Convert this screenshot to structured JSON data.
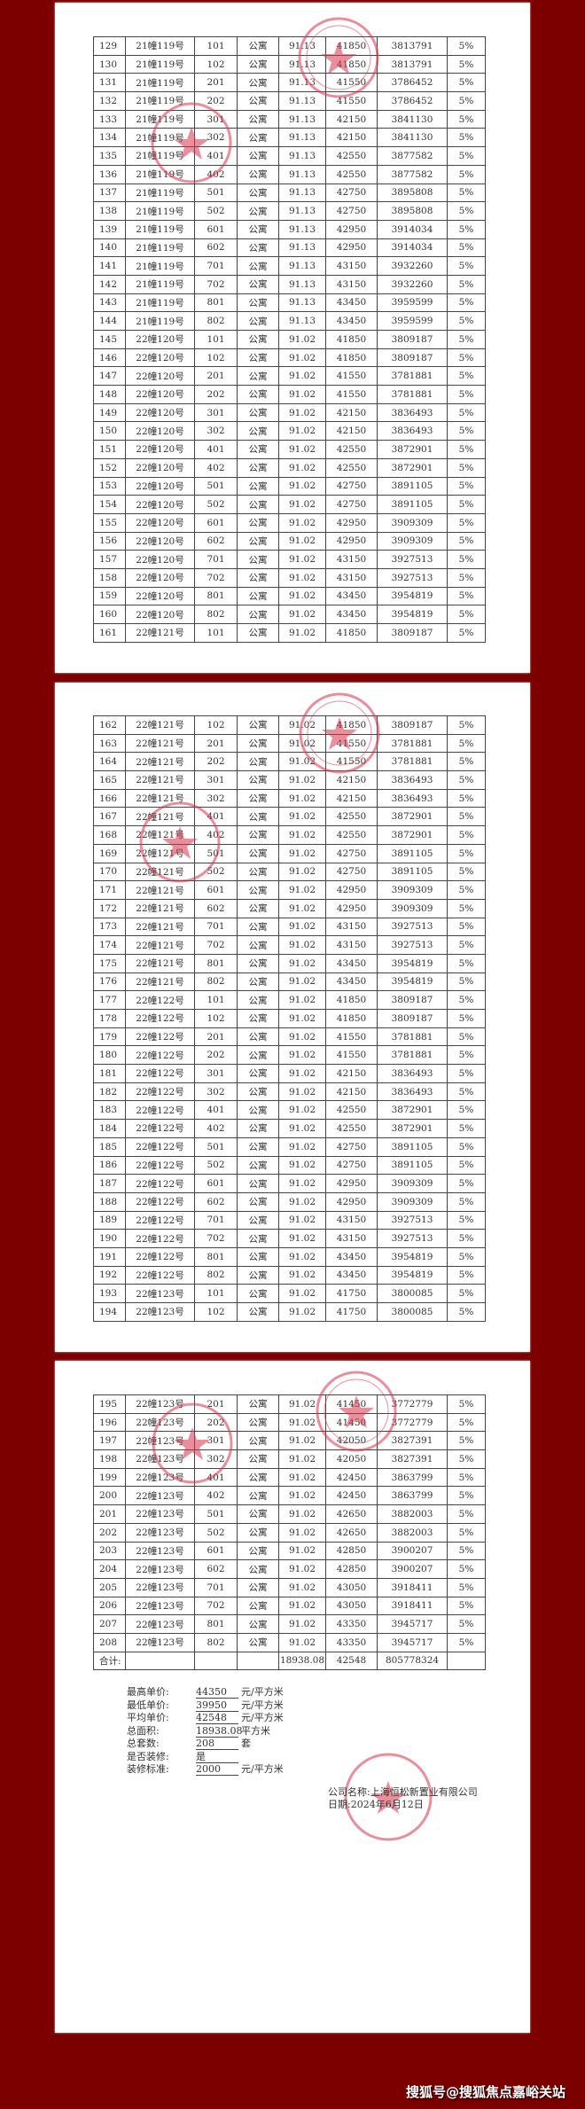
{
  "colors": {
    "background": "#7c0000",
    "stamp": "#d9324a"
  },
  "pages": [
    {
      "rows": [
        [
          "129",
          "21幢119号",
          "101",
          "公寓",
          "91.13",
          "41850",
          "3813791",
          "5%"
        ],
        [
          "130",
          "21幢119号",
          "102",
          "公寓",
          "91.13",
          "41850",
          "3813791",
          "5%"
        ],
        [
          "131",
          "21幢119号",
          "201",
          "公寓",
          "91.13",
          "41550",
          "3786452",
          "5%"
        ],
        [
          "132",
          "21幢119号",
          "202",
          "公寓",
          "91.13",
          "41550",
          "3786452",
          "5%"
        ],
        [
          "133",
          "21幢119号",
          "301",
          "公寓",
          "91.13",
          "42150",
          "3841130",
          "5%"
        ],
        [
          "134",
          "21幢119号",
          "302",
          "公寓",
          "91.13",
          "42150",
          "3841130",
          "5%"
        ],
        [
          "135",
          "21幢119号",
          "401",
          "公寓",
          "91.13",
          "42550",
          "3877582",
          "5%"
        ],
        [
          "136",
          "21幢119号",
          "402",
          "公寓",
          "91.13",
          "42550",
          "3877582",
          "5%"
        ],
        [
          "137",
          "21幢119号",
          "501",
          "公寓",
          "91.13",
          "42750",
          "3895808",
          "5%"
        ],
        [
          "138",
          "21幢119号",
          "502",
          "公寓",
          "91.13",
          "42750",
          "3895808",
          "5%"
        ],
        [
          "139",
          "21幢119号",
          "601",
          "公寓",
          "91.13",
          "42950",
          "3914034",
          "5%"
        ],
        [
          "140",
          "21幢119号",
          "602",
          "公寓",
          "91.13",
          "42950",
          "3914034",
          "5%"
        ],
        [
          "141",
          "21幢119号",
          "701",
          "公寓",
          "91.13",
          "43150",
          "3932260",
          "5%"
        ],
        [
          "142",
          "21幢119号",
          "702",
          "公寓",
          "91.13",
          "43150",
          "3932260",
          "5%"
        ],
        [
          "143",
          "21幢119号",
          "801",
          "公寓",
          "91.13",
          "43450",
          "3959599",
          "5%"
        ],
        [
          "144",
          "21幢119号",
          "802",
          "公寓",
          "91.13",
          "43450",
          "3959599",
          "5%"
        ],
        [
          "145",
          "22幢120号",
          "101",
          "公寓",
          "91.02",
          "41850",
          "3809187",
          "5%"
        ],
        [
          "146",
          "22幢120号",
          "102",
          "公寓",
          "91.02",
          "41850",
          "3809187",
          "5%"
        ],
        [
          "147",
          "22幢120号",
          "201",
          "公寓",
          "91.02",
          "41550",
          "3781881",
          "5%"
        ],
        [
          "148",
          "22幢120号",
          "202",
          "公寓",
          "91.02",
          "41550",
          "3781881",
          "5%"
        ],
        [
          "149",
          "22幢120号",
          "301",
          "公寓",
          "91.02",
          "42150",
          "3836493",
          "5%"
        ],
        [
          "150",
          "22幢120号",
          "302",
          "公寓",
          "91.02",
          "42150",
          "3836493",
          "5%"
        ],
        [
          "151",
          "22幢120号",
          "401",
          "公寓",
          "91.02",
          "42550",
          "3872901",
          "5%"
        ],
        [
          "152",
          "22幢120号",
          "402",
          "公寓",
          "91.02",
          "42550",
          "3872901",
          "5%"
        ],
        [
          "153",
          "22幢120号",
          "501",
          "公寓",
          "91.02",
          "42750",
          "3891105",
          "5%"
        ],
        [
          "154",
          "22幢120号",
          "502",
          "公寓",
          "91.02",
          "42750",
          "3891105",
          "5%"
        ],
        [
          "155",
          "22幢120号",
          "601",
          "公寓",
          "91.02",
          "42950",
          "3909309",
          "5%"
        ],
        [
          "156",
          "22幢120号",
          "602",
          "公寓",
          "91.02",
          "42950",
          "3909309",
          "5%"
        ],
        [
          "157",
          "22幢120号",
          "701",
          "公寓",
          "91.02",
          "43150",
          "3927513",
          "5%"
        ],
        [
          "158",
          "22幢120号",
          "702",
          "公寓",
          "91.02",
          "43150",
          "3927513",
          "5%"
        ],
        [
          "159",
          "22幢120号",
          "801",
          "公寓",
          "91.02",
          "43450",
          "3954819",
          "5%"
        ],
        [
          "160",
          "22幢120号",
          "802",
          "公寓",
          "91.02",
          "43450",
          "3954819",
          "5%"
        ],
        [
          "161",
          "22幢121号",
          "101",
          "公寓",
          "91.02",
          "41850",
          "3809187",
          "5%"
        ]
      ]
    },
    {
      "rows": [
        [
          "162",
          "22幢121号",
          "102",
          "公寓",
          "91.02",
          "41850",
          "3809187",
          "5%"
        ],
        [
          "163",
          "22幢121号",
          "201",
          "公寓",
          "91.02",
          "41550",
          "3781881",
          "5%"
        ],
        [
          "164",
          "22幢121号",
          "202",
          "公寓",
          "91.02",
          "41550",
          "3781881",
          "5%"
        ],
        [
          "165",
          "22幢121号",
          "301",
          "公寓",
          "91.02",
          "42150",
          "3836493",
          "5%"
        ],
        [
          "166",
          "22幢121号",
          "302",
          "公寓",
          "91.02",
          "42150",
          "3836493",
          "5%"
        ],
        [
          "167",
          "22幢121号",
          "401",
          "公寓",
          "91.02",
          "42550",
          "3872901",
          "5%"
        ],
        [
          "168",
          "22幢121号",
          "402",
          "公寓",
          "91.02",
          "42550",
          "3872901",
          "5%"
        ],
        [
          "169",
          "22幢121号",
          "501",
          "公寓",
          "91.02",
          "42750",
          "3891105",
          "5%"
        ],
        [
          "170",
          "22幢121号",
          "502",
          "公寓",
          "91.02",
          "42750",
          "3891105",
          "5%"
        ],
        [
          "171",
          "22幢121号",
          "601",
          "公寓",
          "91.02",
          "42950",
          "3909309",
          "5%"
        ],
        [
          "172",
          "22幢121号",
          "602",
          "公寓",
          "91.02",
          "42950",
          "3909309",
          "5%"
        ],
        [
          "173",
          "22幢121号",
          "701",
          "公寓",
          "91.02",
          "43150",
          "3927513",
          "5%"
        ],
        [
          "174",
          "22幢121号",
          "702",
          "公寓",
          "91.02",
          "43150",
          "3927513",
          "5%"
        ],
        [
          "175",
          "22幢121号",
          "801",
          "公寓",
          "91.02",
          "43450",
          "3954819",
          "5%"
        ],
        [
          "176",
          "22幢121号",
          "802",
          "公寓",
          "91.02",
          "43450",
          "3954819",
          "5%"
        ],
        [
          "177",
          "22幢122号",
          "101",
          "公寓",
          "91.02",
          "41850",
          "3809187",
          "5%"
        ],
        [
          "178",
          "22幢122号",
          "102",
          "公寓",
          "91.02",
          "41850",
          "3809187",
          "5%"
        ],
        [
          "179",
          "22幢122号",
          "201",
          "公寓",
          "91.02",
          "41550",
          "3781881",
          "5%"
        ],
        [
          "180",
          "22幢122号",
          "202",
          "公寓",
          "91.02",
          "41550",
          "3781881",
          "5%"
        ],
        [
          "181",
          "22幢122号",
          "301",
          "公寓",
          "91.02",
          "42150",
          "3836493",
          "5%"
        ],
        [
          "182",
          "22幢122号",
          "302",
          "公寓",
          "91.02",
          "42150",
          "3836493",
          "5%"
        ],
        [
          "183",
          "22幢122号",
          "401",
          "公寓",
          "91.02",
          "42550",
          "3872901",
          "5%"
        ],
        [
          "184",
          "22幢122号",
          "402",
          "公寓",
          "91.02",
          "42550",
          "3872901",
          "5%"
        ],
        [
          "185",
          "22幢122号",
          "501",
          "公寓",
          "91.02",
          "42750",
          "3891105",
          "5%"
        ],
        [
          "186",
          "22幢122号",
          "502",
          "公寓",
          "91.02",
          "42750",
          "3891105",
          "5%"
        ],
        [
          "187",
          "22幢122号",
          "601",
          "公寓",
          "91.02",
          "42950",
          "3909309",
          "5%"
        ],
        [
          "188",
          "22幢122号",
          "602",
          "公寓",
          "91.02",
          "42950",
          "3909309",
          "5%"
        ],
        [
          "189",
          "22幢122号",
          "701",
          "公寓",
          "91.02",
          "43150",
          "3927513",
          "5%"
        ],
        [
          "190",
          "22幢122号",
          "702",
          "公寓",
          "91.02",
          "43150",
          "3927513",
          "5%"
        ],
        [
          "191",
          "22幢122号",
          "801",
          "公寓",
          "91.02",
          "43450",
          "3954819",
          "5%"
        ],
        [
          "192",
          "22幢122号",
          "802",
          "公寓",
          "91.02",
          "43450",
          "3954819",
          "5%"
        ],
        [
          "193",
          "22幢123号",
          "101",
          "公寓",
          "91.02",
          "41750",
          "3800085",
          "5%"
        ],
        [
          "194",
          "22幢123号",
          "102",
          "公寓",
          "91.02",
          "41750",
          "3800085",
          "5%"
        ]
      ]
    },
    {
      "rows": [
        [
          "195",
          "22幢123号",
          "201",
          "公寓",
          "91.02",
          "41450",
          "3772779",
          "5%"
        ],
        [
          "196",
          "22幢123号",
          "202",
          "公寓",
          "91.02",
          "41450",
          "3772779",
          "5%"
        ],
        [
          "197",
          "22幢123号",
          "301",
          "公寓",
          "91.02",
          "42050",
          "3827391",
          "5%"
        ],
        [
          "198",
          "22幢123号",
          "302",
          "公寓",
          "91.02",
          "42050",
          "3827391",
          "5%"
        ],
        [
          "199",
          "22幢123号",
          "401",
          "公寓",
          "91.02",
          "42450",
          "3863799",
          "5%"
        ],
        [
          "200",
          "22幢123号",
          "402",
          "公寓",
          "91.02",
          "42450",
          "3863799",
          "5%"
        ],
        [
          "201",
          "22幢123号",
          "501",
          "公寓",
          "91.02",
          "42650",
          "3882003",
          "5%"
        ],
        [
          "202",
          "22幢123号",
          "502",
          "公寓",
          "91.02",
          "42650",
          "3882003",
          "5%"
        ],
        [
          "203",
          "22幢123号",
          "601",
          "公寓",
          "91.02",
          "42850",
          "3900207",
          "5%"
        ],
        [
          "204",
          "22幢123号",
          "602",
          "公寓",
          "91.02",
          "42850",
          "3900207",
          "5%"
        ],
        [
          "205",
          "22幢123号",
          "701",
          "公寓",
          "91.02",
          "43050",
          "3918411",
          "5%"
        ],
        [
          "206",
          "22幢123号",
          "702",
          "公寓",
          "91.02",
          "43050",
          "3918411",
          "5%"
        ],
        [
          "207",
          "22幢123号",
          "801",
          "公寓",
          "91.02",
          "43350",
          "3945717",
          "5%"
        ],
        [
          "208",
          "22幢123号",
          "802",
          "公寓",
          "91.02",
          "43350",
          "3945717",
          "5%"
        ],
        [
          "合计:",
          "",
          "",
          "",
          "18938.08",
          "42548",
          "805778324",
          ""
        ]
      ]
    }
  ],
  "summary": [
    {
      "label": "最高单价:",
      "value": "44350",
      "unit": "元/平方米"
    },
    {
      "label": "最低单价:",
      "value": "39950",
      "unit": "元/平方米"
    },
    {
      "label": "平均单价:",
      "value": "42548",
      "unit": "元/平方米"
    },
    {
      "label": "总面积:",
      "value": "18938.08",
      "unit": "平方米"
    },
    {
      "label": "总套数:",
      "value": "208",
      "unit": "套"
    },
    {
      "label": "是否装修:",
      "value": "是",
      "unit": ""
    },
    {
      "label": "装修标准:",
      "value": "2000",
      "unit": "元/平方米"
    }
  ],
  "company": {
    "name": "公司名称:上海恒松新置业有限公司",
    "date": "日期:2024年6月12日"
  },
  "watermark": "搜狐号@搜狐焦点嘉峪关站"
}
